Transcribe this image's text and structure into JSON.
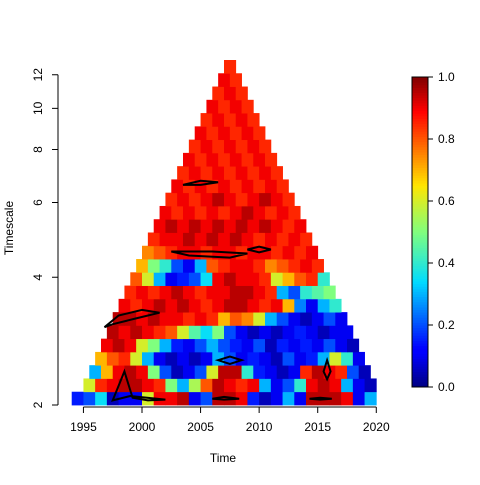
{
  "chart_data": {
    "type": "heatmap",
    "title": "",
    "xlabel": "Time",
    "ylabel": "Timescale",
    "x_range": [
      1993,
      2021
    ],
    "x_ticks": [
      1995,
      2000,
      2005,
      2010,
      2015,
      2020
    ],
    "y_scale": "log",
    "y_range": [
      2,
      13
    ],
    "y_ticks": [
      2,
      4,
      6,
      8,
      10,
      12
    ],
    "colorbar": {
      "min": 0,
      "max": 1,
      "ticks": [
        "0.0",
        "0.2",
        "0.4",
        "0.6",
        "0.8",
        "1.0"
      ],
      "colormap": "jet-like (dark blue to dark red)"
    },
    "colors": {
      "low": "#00007f",
      "mid": "#7fff7f",
      "high": "#7f0000"
    },
    "cone_of_influence": "triangular, apex near 2007 at timescale ~13",
    "value_rows": [
      [
        0.15,
        0.2,
        0.35,
        0.05,
        0.1,
        0.1,
        0.6,
        0.9,
        0.9,
        0.95,
        0.1,
        0.2,
        0.95,
        0.95,
        0.9,
        0.15,
        0.05,
        0.1,
        0.3,
        0.1,
        0.95,
        0.95,
        0.95,
        0.9,
        0.1,
        0.3
      ],
      [
        0.6,
        0.85,
        0.9,
        0.95,
        0.95,
        0.9,
        0.85,
        0.5,
        0.3,
        0.55,
        0.8,
        0.95,
        0.9,
        0.85,
        0.9,
        0.3,
        0.1,
        0.2,
        0.4,
        0.9,
        0.95,
        0.9,
        0.3,
        0.1,
        0.05
      ],
      [
        0.3,
        0.7,
        0.9,
        0.95,
        0.9,
        0.5,
        0.2,
        0.05,
        0.1,
        0.2,
        0.6,
        0.95,
        0.95,
        0.4,
        0.15,
        0.1,
        0.05,
        0.1,
        0.85,
        0.95,
        0.9,
        0.85,
        0.2,
        0.05
      ],
      [
        0.7,
        0.8,
        0.85,
        0.6,
        0.3,
        0.1,
        0.05,
        0.1,
        0.05,
        0.1,
        0.3,
        0.2,
        0.1,
        0.15,
        0.1,
        0.05,
        0.2,
        0.1,
        0.15,
        0.3,
        0.6,
        0.4,
        0.1
      ],
      [
        0.9,
        0.95,
        0.9,
        0.6,
        0.5,
        0.3,
        0.15,
        0.1,
        0.2,
        0.3,
        0.2,
        0.15,
        0.1,
        0.2,
        0.05,
        0.15,
        0.1,
        0.15,
        0.1,
        0.2,
        0.1,
        0.05
      ],
      [
        0.95,
        0.9,
        0.95,
        0.9,
        0.85,
        0.8,
        0.6,
        0.45,
        0.35,
        0.5,
        0.2,
        0.1,
        0.05,
        0.1,
        0.05,
        0.1,
        0.15,
        0.1,
        0.05,
        0.1,
        0.1
      ],
      [
        0.95,
        0.95,
        0.9,
        0.95,
        0.9,
        0.9,
        0.85,
        0.9,
        0.85,
        0.7,
        0.8,
        0.75,
        0.6,
        0.3,
        0.2,
        0.1,
        0.05,
        0.1,
        0.2,
        0.1
      ],
      [
        0.9,
        0.85,
        0.9,
        0.95,
        0.9,
        0.95,
        0.9,
        0.85,
        0.9,
        0.95,
        0.95,
        0.9,
        0.85,
        0.9,
        0.7,
        0.25,
        0.1,
        0.3,
        0.4
      ],
      [
        0.85,
        0.9,
        0.85,
        0.9,
        0.95,
        0.9,
        0.85,
        0.9,
        0.9,
        0.95,
        0.95,
        0.9,
        0.85,
        0.3,
        0.2,
        0.4,
        0.45,
        0.5
      ],
      [
        0.8,
        0.6,
        0.3,
        0.1,
        0.15,
        0.2,
        0.35,
        0.9,
        0.95,
        0.9,
        0.9,
        0.85,
        0.6,
        0.7,
        0.8,
        0.85,
        0.4
      ],
      [
        0.7,
        0.5,
        0.4,
        0.2,
        0.1,
        0.3,
        0.8,
        0.85,
        0.9,
        0.9,
        0.85,
        0.75,
        0.8,
        0.85,
        0.9,
        0.85
      ],
      [
        0.75,
        0.8,
        0.85,
        0.9,
        0.9,
        0.85,
        0.9,
        0.9,
        0.85,
        0.9,
        0.9,
        0.85,
        0.9,
        0.85,
        0.9
      ],
      [
        0.85,
        0.9,
        0.9,
        0.95,
        0.9,
        0.95,
        0.9,
        0.95,
        0.9,
        0.85,
        0.9,
        0.85,
        0.9,
        0.85
      ],
      [
        0.9,
        0.95,
        0.9,
        0.95,
        0.9,
        0.95,
        0.9,
        0.95,
        0.9,
        0.95,
        0.9,
        0.85,
        0.9
      ],
      [
        0.9,
        0.85,
        0.9,
        0.85,
        0.9,
        0.85,
        0.9,
        0.95,
        0.9,
        0.85,
        0.9,
        0.85
      ],
      [
        0.85,
        0.9,
        0.85,
        0.9,
        0.95,
        0.9,
        0.85,
        0.9,
        0.95,
        0.9,
        0.85
      ],
      [
        0.9,
        0.85,
        0.9,
        0.85,
        0.9,
        0.85,
        0.9,
        0.85,
        0.9,
        0.85
      ],
      [
        0.85,
        0.9,
        0.85,
        0.9,
        0.85,
        0.9,
        0.85,
        0.9,
        0.85
      ],
      [
        0.9,
        0.85,
        0.9,
        0.85,
        0.9,
        0.85,
        0.9,
        0.85
      ],
      [
        0.85,
        0.9,
        0.85,
        0.9,
        0.85,
        0.9,
        0.85
      ],
      [
        0.9,
        0.85,
        0.9,
        0.85,
        0.9,
        0.85
      ],
      [
        0.85,
        0.9,
        0.85,
        0.9,
        0.85
      ],
      [
        0.9,
        0.85,
        0.9,
        0.85
      ],
      [
        0.85,
        0.9,
        0.85
      ],
      [
        0.9,
        0.85
      ],
      [
        0.85
      ]
    ],
    "contour_level": 0.95
  }
}
